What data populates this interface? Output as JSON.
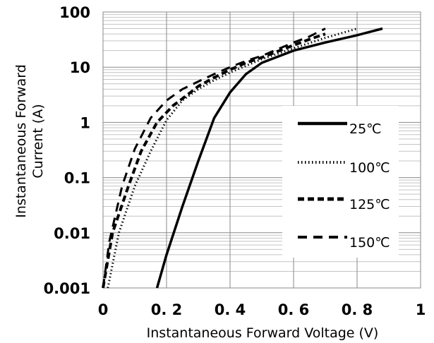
{
  "chart_data": {
    "type": "line",
    "xlabel": "Instantaneous Forward Voltage (V)",
    "ylabel_line1": "Instantaneous Forward",
    "ylabel_line2": "Current (A)",
    "x_scale": "linear",
    "y_scale": "log",
    "xlim": [
      0,
      1
    ],
    "ylim": [
      0.001,
      100
    ],
    "x_ticks": [
      {
        "value": 0,
        "label": "0"
      },
      {
        "value": 0.2,
        "label": "0. 2"
      },
      {
        "value": 0.4,
        "label": "0. 4"
      },
      {
        "value": 0.6,
        "label": "0. 6"
      },
      {
        "value": 0.8,
        "label": "0. 8"
      },
      {
        "value": 1,
        "label": "1"
      }
    ],
    "y_ticks": [
      {
        "value": 0.001,
        "label": "0.001"
      },
      {
        "value": 0.01,
        "label": "0.01"
      },
      {
        "value": 0.1,
        "label": "0.1"
      },
      {
        "value": 1,
        "label": "1"
      },
      {
        "value": 10,
        "label": "10"
      },
      {
        "value": 100,
        "label": "100"
      }
    ],
    "grid": "vertical major lines, horizontal major and minor (log) lines",
    "legend_position": "right, lower middle",
    "series": [
      {
        "name": "25℃",
        "style": "solid",
        "x": [
          0.17,
          0.2,
          0.25,
          0.3,
          0.35,
          0.4,
          0.45,
          0.5,
          0.6,
          0.7,
          0.8,
          0.88
        ],
        "y": [
          0.001,
          0.004,
          0.03,
          0.2,
          1.2,
          3.5,
          7.5,
          12,
          20,
          28,
          38,
          50
        ]
      },
      {
        "name": "100℃",
        "style": "dotted",
        "x": [
          0.015,
          0.05,
          0.1,
          0.15,
          0.2,
          0.25,
          0.3,
          0.35,
          0.4,
          0.5,
          0.6,
          0.7,
          0.8
        ],
        "y": [
          0.001,
          0.01,
          0.07,
          0.3,
          1.1,
          2.5,
          4,
          5.8,
          8,
          14,
          22,
          34,
          50
        ]
      },
      {
        "name": "125℃",
        "style": "dashed-bold",
        "x": [
          0,
          0.03,
          0.08,
          0.12,
          0.17,
          0.22,
          0.27,
          0.3,
          0.35,
          0.4,
          0.45,
          0.5,
          0.6,
          0.65,
          0.7
        ],
        "y": [
          0.001,
          0.01,
          0.07,
          0.3,
          1,
          2,
          3.3,
          4.5,
          6.5,
          9,
          12,
          15,
          25,
          32,
          40
        ]
      },
      {
        "name": "150℃",
        "style": "dashed",
        "x": [
          0,
          0.02,
          0.06,
          0.1,
          0.15,
          0.2,
          0.25,
          0.3,
          0.35,
          0.4,
          0.45,
          0.5,
          0.6,
          0.65,
          0.7
        ],
        "y": [
          0.001,
          0.007,
          0.07,
          0.33,
          1.2,
          2.5,
          4,
          5.5,
          7.5,
          10,
          13,
          16,
          28,
          36,
          50
        ]
      }
    ]
  }
}
